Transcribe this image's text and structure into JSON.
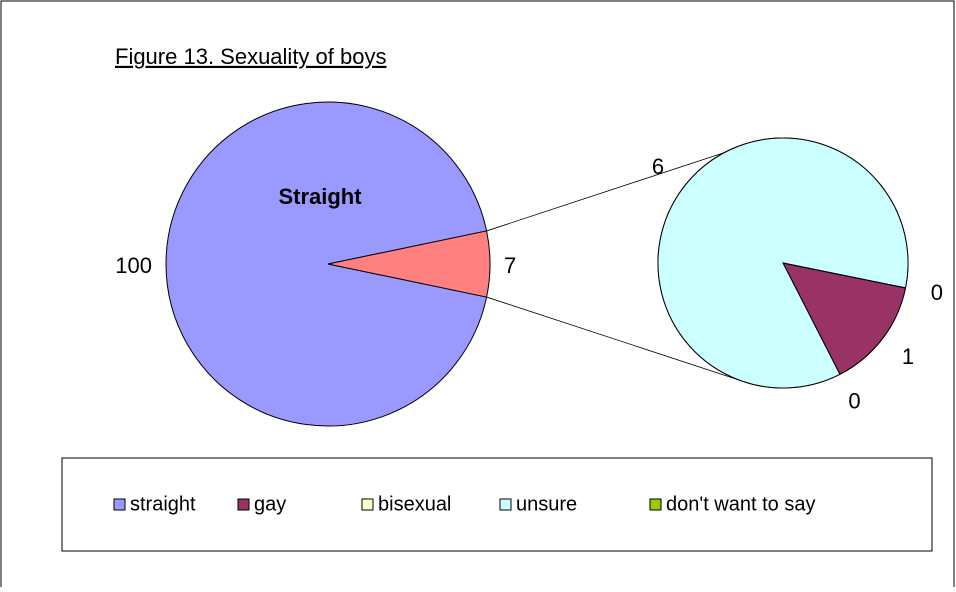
{
  "chart_data": {
    "type": "pie",
    "title": "Figure 13. Sexuality of boys",
    "inner_label": "Straight",
    "categories": [
      "straight",
      "gay",
      "bisexual",
      "unsure",
      "don't want to say"
    ],
    "values": [
      100,
      1,
      0,
      6,
      0
    ],
    "colors": [
      "#9999ff",
      "#993366",
      "#ffffcc",
      "#ccffff",
      "#99cc00"
    ],
    "other_value": 7,
    "other_color": "#ff8080",
    "legend": "bottom"
  }
}
